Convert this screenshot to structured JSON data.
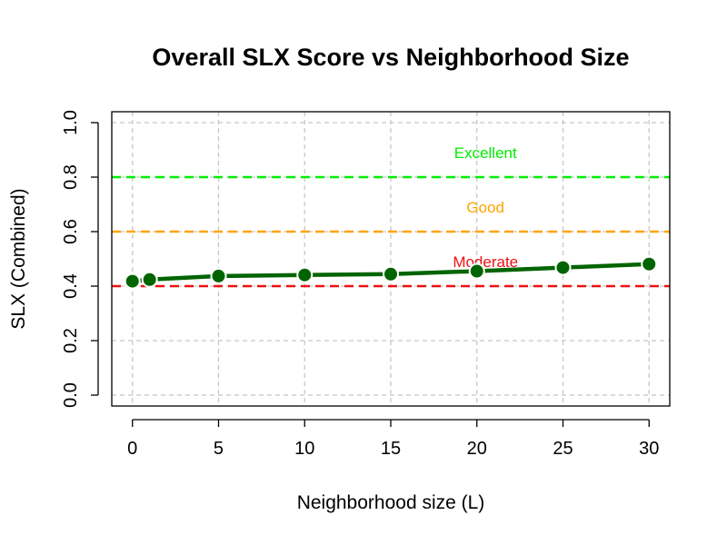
{
  "chart_data": {
    "type": "line",
    "title": "Overall SLX Score vs Neighborhood Size",
    "xlabel": "Neighborhood size (L)",
    "ylabel": "SLX (Combined)",
    "xlim": [
      -1.2,
      31.2
    ],
    "ylim": [
      -0.04,
      1.04
    ],
    "x_ticks": [
      0,
      5,
      10,
      15,
      20,
      25,
      30
    ],
    "y_ticks": [
      0.0,
      0.2,
      0.4,
      0.6,
      0.8,
      1.0
    ],
    "x_tick_labels": [
      "0",
      "5",
      "10",
      "15",
      "20",
      "25",
      "30"
    ],
    "y_tick_labels": [
      "0.0",
      "0.2",
      "0.4",
      "0.6",
      "0.8",
      "1.0"
    ],
    "grid": true,
    "series": [
      {
        "color": "#006400",
        "x": [
          0,
          1,
          5,
          10,
          15,
          20,
          25,
          30
        ],
        "y": [
          0.418,
          0.424,
          0.437,
          0.441,
          0.444,
          0.455,
          0.468,
          0.481
        ]
      }
    ],
    "reference_lines": [
      {
        "y": 0.8,
        "color": "#00ee00"
      },
      {
        "y": 0.6,
        "color": "#ffa500"
      },
      {
        "y": 0.4,
        "color": "#ee1111"
      }
    ],
    "annotations": [
      {
        "text": "Excellent",
        "x": 20.5,
        "y": 0.89,
        "color": "#00ee00"
      },
      {
        "text": "Good",
        "x": 20.5,
        "y": 0.69,
        "color": "#ffa500"
      },
      {
        "text": "Moderate",
        "x": 20.5,
        "y": 0.49,
        "color": "#ee1111"
      }
    ]
  }
}
